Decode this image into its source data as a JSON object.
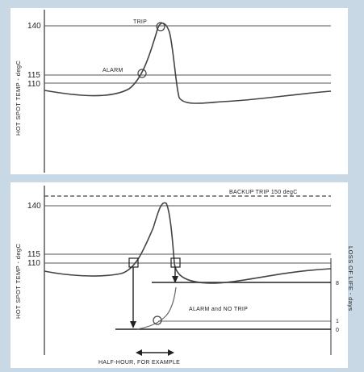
{
  "top_panel": {
    "y_axis_label": "HOT SPOT TEMP - degC",
    "tick_140": "140",
    "tick_115": "115",
    "tick_110": "110",
    "trip_label": "TRIP",
    "alarm_label": "ALARM"
  },
  "bottom_panel": {
    "y_axis_label": "HOT SPOT TEMP - degC",
    "tick_140": "140",
    "tick_115": "115",
    "tick_110": "110",
    "backup_trip_label": "BACKUP TRIP 150 degC",
    "alarm_no_trip_label": "ALARM and NO TRIP",
    "right_axis_label": "LOSS OF LIFE - days",
    "right_tick_top": "8",
    "right_tick_mid": "1",
    "right_tick_low": "0"
  },
  "duration_label": "HALF-HOUR, FOR EXAMPLE",
  "colors": {
    "background": "#c8d8e4",
    "panel": "#ffffff",
    "line": "#333333"
  }
}
